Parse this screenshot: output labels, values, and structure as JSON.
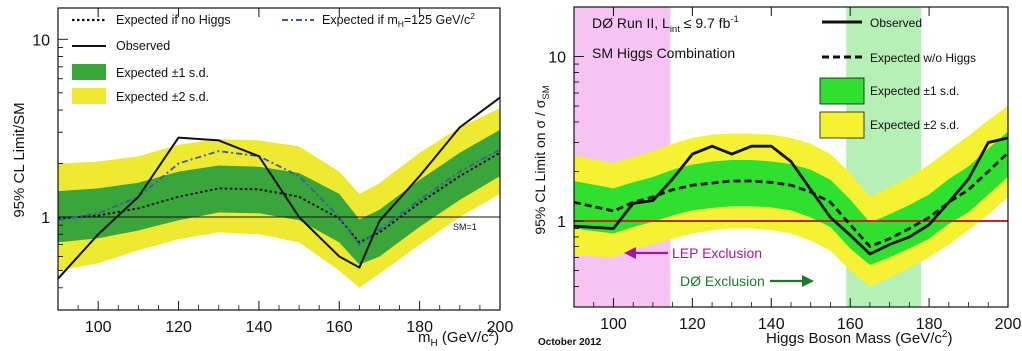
{
  "chart_data": [
    {
      "type": "line",
      "ylabel": "95% CL Limit/SM",
      "xlabel": "m_H (GeV/c²)",
      "x_ticks": [
        100,
        120,
        140,
        160,
        180,
        200
      ],
      "y_ticks": [
        "1",
        "10"
      ],
      "xlim": [
        90,
        200
      ],
      "ylim": [
        0.3,
        15
      ],
      "yscale": "log",
      "reference_line": {
        "value": 1,
        "label": "SM=1"
      },
      "legend": {
        "expected_no_higgs": "Expected if no Higgs",
        "expected_mh125_prefix": "Expected if m",
        "expected_mh125_sub": "H",
        "expected_mh125_suffix": "=125 GeV/c",
        "expected_mh125_sup": "2",
        "observed": "Observed",
        "band1": "Expected ±1 s.d.",
        "band2": "Expected ±2 s.d."
      },
      "x": [
        90,
        100,
        110,
        120,
        130,
        140,
        150,
        160,
        165,
        170,
        180,
        190,
        200
      ],
      "series": [
        {
          "name": "Expected if no Higgs",
          "style": "dotted",
          "color": "#111111",
          "values": [
            0.98,
            1.02,
            1.12,
            1.3,
            1.45,
            1.43,
            1.3,
            0.98,
            0.72,
            0.82,
            1.2,
            1.7,
            2.3
          ]
        },
        {
          "name": "Expected if mH=125 GeV/c2",
          "style": "dashdot",
          "color": "#3b5ba9",
          "values": [
            0.96,
            1.05,
            1.3,
            2.0,
            2.35,
            2.2,
            1.7,
            1.0,
            0.7,
            0.85,
            1.25,
            1.8,
            2.4
          ]
        },
        {
          "name": "Observed",
          "style": "solid",
          "color": "#111111",
          "values": [
            0.45,
            0.8,
            1.3,
            2.8,
            2.7,
            2.2,
            1.0,
            0.6,
            0.52,
            0.95,
            1.7,
            3.2,
            4.7
          ]
        }
      ],
      "bands": [
        {
          "name": "Expected ±2 s.d.",
          "color": "#eeea32",
          "low": [
            0.5,
            0.55,
            0.65,
            0.75,
            0.82,
            0.8,
            0.72,
            0.5,
            0.4,
            0.48,
            0.7,
            1.0,
            1.35
          ],
          "high": [
            2.0,
            2.05,
            2.2,
            2.55,
            2.75,
            2.7,
            2.5,
            1.8,
            1.35,
            1.55,
            2.3,
            3.2,
            4.1
          ]
        },
        {
          "name": "Expected ±1 s.d.",
          "color": "#3aa53a",
          "low": [
            0.72,
            0.76,
            0.84,
            0.96,
            1.06,
            1.05,
            0.96,
            0.72,
            0.54,
            0.6,
            0.88,
            1.25,
            1.7
          ],
          "high": [
            1.4,
            1.45,
            1.56,
            1.8,
            1.95,
            1.92,
            1.77,
            1.35,
            0.97,
            1.1,
            1.62,
            2.3,
            3.1
          ]
        }
      ]
    },
    {
      "type": "line",
      "title_line1_prefix": "DØ Run II, L",
      "title_line1_sub": "int",
      "title_line1_suffix": " ≤ 9.7 fb",
      "title_line1_sup": "-1",
      "title_line2": "SM Higgs Combination",
      "ylabel": "95% CL Limit on σ / σ",
      "ylabel_sub": "SM",
      "xlabel": "Higgs Boson Mass (GeV/c",
      "xlabel_sup": "2",
      "xlabel_end": ")",
      "date": "October 2012",
      "x_ticks": [
        100,
        120,
        140,
        160,
        180,
        200
      ],
      "y_ticks": [
        "1",
        "10"
      ],
      "xlim": [
        90,
        200
      ],
      "ylim": [
        0.3,
        20
      ],
      "yscale": "log",
      "reference_line": {
        "value": 1,
        "color": "#cc2222"
      },
      "regions": [
        {
          "label": "LEP Exclusion",
          "from": 90,
          "to": 114.4,
          "color": "#f5c4f3",
          "label_color": "#a01aa0"
        },
        {
          "label": "DØ Exclusion",
          "from": 159,
          "to": 178,
          "color": "#b6f0b6",
          "label_color": "#1a7a2a"
        }
      ],
      "legend": {
        "observed": "Observed",
        "expected": "Expected w/o Higgs",
        "band1": "Expected ±1 s.d.",
        "band2": "Expected ±2 s.d."
      },
      "x": [
        90,
        100,
        105,
        110,
        115,
        120,
        125,
        130,
        135,
        140,
        145,
        150,
        155,
        160,
        165,
        170,
        175,
        180,
        185,
        190,
        195,
        200
      ],
      "series": [
        {
          "name": "Observed",
          "style": "solid",
          "color": "#111111",
          "values": [
            0.93,
            0.9,
            1.28,
            1.33,
            1.8,
            2.55,
            2.85,
            2.55,
            2.85,
            2.85,
            2.3,
            1.55,
            1.05,
            0.82,
            0.63,
            0.72,
            0.8,
            0.95,
            1.3,
            1.8,
            3.0,
            3.2
          ]
        },
        {
          "name": "Expected w/o Higgs",
          "style": "dashed",
          "color": "#111111",
          "values": [
            1.3,
            1.15,
            1.3,
            1.4,
            1.55,
            1.65,
            1.7,
            1.75,
            1.75,
            1.72,
            1.65,
            1.5,
            1.3,
            0.95,
            0.7,
            0.78,
            0.9,
            1.05,
            1.3,
            1.55,
            2.0,
            2.6
          ]
        }
      ],
      "bands": [
        {
          "name": "Expected ±2 s.d.",
          "color": "#f4f232",
          "low": [
            0.62,
            0.6,
            0.67,
            0.72,
            0.78,
            0.84,
            0.88,
            0.9,
            0.9,
            0.88,
            0.84,
            0.76,
            0.66,
            0.5,
            0.4,
            0.45,
            0.52,
            0.6,
            0.72,
            0.88,
            1.1,
            1.4
          ],
          "high": [
            2.5,
            2.25,
            2.45,
            2.65,
            2.95,
            3.2,
            3.35,
            3.4,
            3.4,
            3.35,
            3.2,
            2.95,
            2.55,
            1.95,
            1.4,
            1.6,
            1.85,
            2.2,
            2.7,
            3.3,
            4.1,
            5.0
          ]
        },
        {
          "name": "Expected ±1 s.d.",
          "color": "#2fe02f",
          "low": [
            0.9,
            0.84,
            0.92,
            0.99,
            1.08,
            1.16,
            1.2,
            1.23,
            1.23,
            1.21,
            1.16,
            1.05,
            0.92,
            0.68,
            0.54,
            0.6,
            0.68,
            0.78,
            0.96,
            1.13,
            1.45,
            1.85
          ],
          "high": [
            1.75,
            1.58,
            1.72,
            1.85,
            2.05,
            2.2,
            2.3,
            2.35,
            2.35,
            2.3,
            2.22,
            2.05,
            1.78,
            1.35,
            0.98,
            1.1,
            1.25,
            1.45,
            1.8,
            2.15,
            2.75,
            3.5
          ]
        }
      ]
    }
  ]
}
